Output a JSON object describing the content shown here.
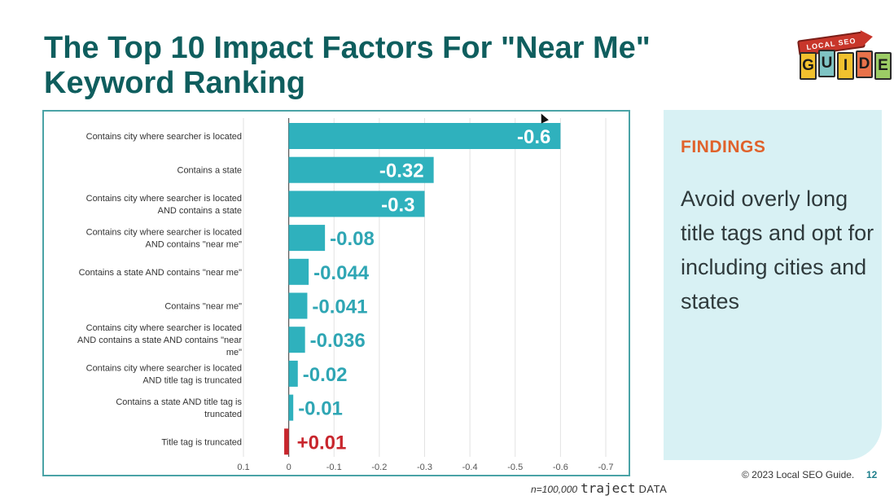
{
  "slide": {
    "title": "The Top 10 Impact Factors For \"Near Me\"\nKeyword Ranking",
    "logo": {
      "banner_text": "LOCAL SEO",
      "letters": [
        "G",
        "U",
        "I",
        "D",
        "E"
      ]
    },
    "findings": {
      "heading": "FINDINGS",
      "body": "Avoid overly long title tags and opt for including cities and states"
    },
    "footer": {
      "copyright": "© 2023 Local SEO Guide.",
      "page_number": "12"
    },
    "source": {
      "sample": "n=100,000",
      "brand": "traject",
      "brand_suffix": "DATA"
    }
  },
  "chart_data": {
    "type": "bar",
    "orientation": "horizontal",
    "categories": [
      [
        "Contains city where searcher is located"
      ],
      [
        "Contains a state"
      ],
      [
        "Contains city where searcher is located",
        "AND contains a state"
      ],
      [
        "Contains city where searcher is located",
        "AND contains \"near me\""
      ],
      [
        "Contains a state AND contains \"near me\""
      ],
      [
        "Contains \"near me\""
      ],
      [
        "Contains city where searcher is located",
        "AND contains a state AND contains \"near",
        "me\""
      ],
      [
        "Contains city where searcher is located",
        "AND title tag is truncated"
      ],
      [
        "Contains a state AND title tag is",
        "truncated"
      ],
      [
        "Title tag is truncated"
      ]
    ],
    "values": [
      -0.6,
      -0.32,
      -0.3,
      -0.08,
      -0.044,
      -0.041,
      -0.036,
      -0.02,
      -0.01,
      0.01
    ],
    "data_labels": [
      "-0.6",
      "-0.32",
      "-0.3",
      "-0.08",
      "-0.044",
      "-0.041",
      "-0.036",
      "-0.02",
      "-0.01",
      "+0.01"
    ],
    "x_ticks": [
      0.1,
      0,
      -0.1,
      -0.2,
      -0.3,
      -0.4,
      -0.5,
      -0.6,
      -0.7
    ],
    "x_tick_labels": [
      "0.1",
      "0",
      "-0.1",
      "-0.2",
      "-0.3",
      "-0.4",
      "-0.5",
      "-0.6",
      "-0.7"
    ],
    "xlim": [
      0.1,
      -0.7
    ],
    "x_reversed": true,
    "grid": true,
    "colors": {
      "negative": "#2fb1bd",
      "positive": "#c8262d",
      "label": "#2fa6b4",
      "label_positive": "#c8262d"
    },
    "title": "",
    "xlabel": "",
    "ylabel": ""
  }
}
